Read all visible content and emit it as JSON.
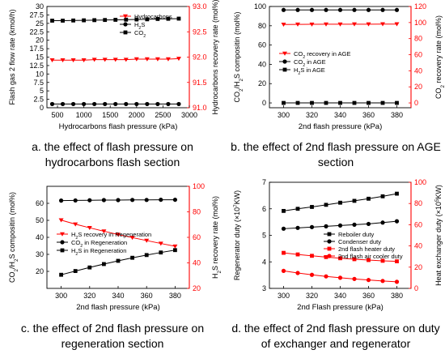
{
  "chart_data": [
    {
      "type": "line",
      "caption": "a. the effect of flash pressure on hydrocarbons flash section",
      "xlabel": "Hydrocarbons flash pressure (kPa)",
      "ylabel_left": "Flash gas 2 flow rate (kmol/h)",
      "ylabel_right": "Hydrocarbons recovery rate (mol%)",
      "xlim": [
        300,
        3000
      ],
      "xticks": [
        500,
        1000,
        1500,
        2000,
        2500,
        3000
      ],
      "ylim_left": [
        0,
        30
      ],
      "yticks_left": [
        0,
        2.5,
        5,
        7.5,
        10,
        12.5,
        15,
        17.5,
        20,
        22.5,
        25,
        27.5,
        30
      ],
      "ytick_labels_left": [
        "0",
        "2.5",
        "5",
        "7.5",
        "10",
        "12.5",
        "15",
        "17.5",
        "20",
        "22.5",
        "25",
        "27.5",
        "30"
      ],
      "ylim_right": [
        91.0,
        93.0
      ],
      "yticks_right": [
        91.0,
        91.5,
        92.0,
        92.5,
        93.0
      ],
      "ytick_labels_right": [
        "91.0",
        "91.5",
        "92.0",
        "92.5",
        "93.0"
      ],
      "legend_position": "top-right",
      "series": [
        {
          "name": "Hydrocarbons",
          "axis": "right",
          "color": "#ff0000",
          "marker": "triangle-down",
          "x": [
            400,
            600,
            800,
            1000,
            1200,
            1400,
            1600,
            1800,
            2000,
            2200,
            2400,
            2600,
            2800
          ],
          "values": [
            91.94,
            91.94,
            91.94,
            91.94,
            91.95,
            91.95,
            91.95,
            91.95,
            91.96,
            91.96,
            91.96,
            91.96,
            91.97
          ]
        },
        {
          "name": "H2S",
          "axis": "left",
          "color": "#000000",
          "marker": "circle",
          "x": [
            400,
            600,
            800,
            1000,
            1200,
            1400,
            1600,
            1800,
            2000,
            2200,
            2400,
            2600,
            2800
          ],
          "values": [
            1.1,
            1.1,
            1.1,
            1.1,
            1.1,
            1.1,
            1.1,
            1.1,
            1.1,
            1.1,
            1.1,
            1.1,
            1.1
          ]
        },
        {
          "name": "CO2",
          "axis": "left",
          "color": "#000000",
          "marker": "square",
          "x": [
            400,
            600,
            800,
            1000,
            1200,
            1400,
            1600,
            1800,
            2000,
            2200,
            2400,
            2600,
            2800
          ],
          "values": [
            25.8,
            25.8,
            25.85,
            25.9,
            25.95,
            26.0,
            26.05,
            26.1,
            26.15,
            26.2,
            26.3,
            26.35,
            26.4
          ]
        }
      ]
    },
    {
      "type": "line",
      "caption": "b. the effect of 2nd flash pressure on AGE section",
      "xlabel": "2nd flash pressure (kPa)",
      "ylabel_left": "CO2/H2S compositin (mol%)",
      "ylabel_right": "CO2 recovery rate (mol%)",
      "xlim": [
        290,
        390
      ],
      "xticks": [
        300,
        320,
        340,
        360,
        380
      ],
      "ylim_left": [
        -5,
        100
      ],
      "yticks_left": [
        0,
        20,
        40,
        60,
        80,
        100
      ],
      "ytick_labels_left": [
        "0",
        "20",
        "40",
        "60",
        "80",
        "100"
      ],
      "ylim_right": [
        -6,
        120
      ],
      "yticks_right": [
        0,
        20,
        40,
        60,
        80,
        100,
        120
      ],
      "ytick_labels_right": [
        "0",
        "20",
        "40",
        "60",
        "80",
        "100",
        "120"
      ],
      "legend_position": "center-left",
      "series": [
        {
          "name": "CO2 recovery in AGE",
          "axis": "right",
          "color": "#ff0000",
          "marker": "triangle-down",
          "x": [
            300,
            310,
            320,
            330,
            340,
            350,
            360,
            370,
            380
          ],
          "values": [
            97.6,
            97.7,
            97.8,
            97.9,
            97.9,
            98.0,
            98.0,
            98.1,
            98.1
          ]
        },
        {
          "name": "CO2 in AGE",
          "axis": "left",
          "color": "#000000",
          "marker": "circle",
          "x": [
            300,
            310,
            320,
            330,
            340,
            350,
            360,
            370,
            380
          ],
          "values": [
            96.4,
            96.4,
            96.4,
            96.4,
            96.4,
            96.4,
            96.4,
            96.4,
            96.4
          ]
        },
        {
          "name": "H2S in AGE",
          "axis": "left",
          "color": "#000000",
          "marker": "square",
          "x": [
            300,
            310,
            320,
            330,
            340,
            350,
            360,
            370,
            380
          ],
          "values": [
            0.0,
            0.0,
            0.0,
            0.0,
            0.0,
            0.0,
            0.0,
            0.0,
            0.0
          ]
        }
      ]
    },
    {
      "type": "line",
      "caption": "c. the effect of 2nd flash pressure on regeneration section",
      "xlabel": "2nd flash pressure (kPa)",
      "ylabel_left": "CO2/H2S compositin (mol%)",
      "ylabel_right": "H2S recovery rate (mol%)",
      "xlim": [
        290,
        390
      ],
      "xticks": [
        300,
        320,
        340,
        360,
        380
      ],
      "ylim_left": [
        10,
        70
      ],
      "yticks_left": [
        20,
        30,
        40,
        50,
        60
      ],
      "ytick_labels_left": [
        "20",
        "30",
        "40",
        "50",
        "60"
      ],
      "ylim_right": [
        20,
        100
      ],
      "yticks_right": [
        20,
        40,
        60,
        80,
        100
      ],
      "ytick_labels_right": [
        "20",
        "40",
        "60",
        "80",
        "100"
      ],
      "legend_position": "center-left",
      "series": [
        {
          "name": "H2S recovery in Regeneration",
          "axis": "right",
          "color": "#ff0000",
          "marker": "triangle-down",
          "x": [
            300,
            310,
            320,
            330,
            340,
            350,
            360,
            370,
            380
          ],
          "values": [
            73.5,
            70.3,
            67.5,
            64.8,
            62.2,
            59.8,
            57.5,
            55.2,
            53.0
          ]
        },
        {
          "name": "CO2 in Regeneration",
          "axis": "left",
          "color": "#000000",
          "marker": "circle",
          "x": [
            300,
            310,
            320,
            330,
            340,
            350,
            360,
            370,
            380
          ],
          "values": [
            61.6,
            61.7,
            61.8,
            61.9,
            61.9,
            62.0,
            62.0,
            62.1,
            62.1
          ]
        },
        {
          "name": "H2S in Regeneration",
          "axis": "left",
          "color": "#000000",
          "marker": "square",
          "x": [
            300,
            310,
            320,
            330,
            340,
            350,
            360,
            370,
            380
          ],
          "values": [
            18.0,
            20.2,
            22.3,
            24.3,
            26.2,
            28.0,
            29.6,
            31.1,
            32.5
          ]
        }
      ]
    },
    {
      "type": "line",
      "caption": "d. the effect of 2nd flash pressure on duty of exchanger and regenerator",
      "xlabel": "2nd Flash pressure (kPa)",
      "ylabel_left": "Regenerator duty (×10^7KW)",
      "ylabel_right": "Heat exchanger duty (×10^5KW)",
      "xlim": [
        290,
        390
      ],
      "xticks": [
        300,
        320,
        340,
        360,
        380
      ],
      "ylim_left": [
        3,
        7
      ],
      "yticks_left": [
        3,
        4,
        5,
        6,
        7
      ],
      "ytick_labels_left": [
        "3",
        "4",
        "5",
        "6",
        "7"
      ],
      "ylim_right": [
        0,
        100
      ],
      "yticks_right": [
        0,
        20,
        40,
        60,
        80,
        100
      ],
      "ytick_labels_right": [
        "0",
        "20",
        "40",
        "60",
        "80",
        "100"
      ],
      "legend_position": "center-right",
      "series": [
        {
          "name": "Reboiler duty",
          "axis": "left",
          "color": "#000000",
          "marker": "square",
          "x": [
            300,
            310,
            320,
            330,
            340,
            350,
            360,
            370,
            380
          ],
          "values": [
            5.92,
            6.0,
            6.07,
            6.15,
            6.23,
            6.3,
            6.38,
            6.47,
            6.57
          ]
        },
        {
          "name": "Condenser duty",
          "axis": "left",
          "color": "#000000",
          "marker": "circle",
          "x": [
            300,
            310,
            320,
            330,
            340,
            350,
            360,
            370,
            380
          ],
          "values": [
            5.25,
            5.28,
            5.31,
            5.34,
            5.37,
            5.4,
            5.43,
            5.48,
            5.53
          ]
        },
        {
          "name": "2nd flash heater duty",
          "axis": "right",
          "color": "#ff0000",
          "marker": "square",
          "x": [
            300,
            310,
            320,
            330,
            340,
            350,
            360,
            370,
            380
          ],
          "values": [
            33.5,
            32.0,
            30.7,
            29.5,
            28.4,
            27.5,
            26.7,
            26.0,
            25.5
          ]
        },
        {
          "name": "2nd flash air cooler duty",
          "axis": "right",
          "color": "#ff0000",
          "marker": "circle",
          "x": [
            300,
            310,
            320,
            330,
            340,
            350,
            360,
            370,
            380
          ],
          "values": [
            16.5,
            14.5,
            12.8,
            11.3,
            10.0,
            8.9,
            7.9,
            7.0,
            6.2
          ]
        }
      ]
    }
  ]
}
